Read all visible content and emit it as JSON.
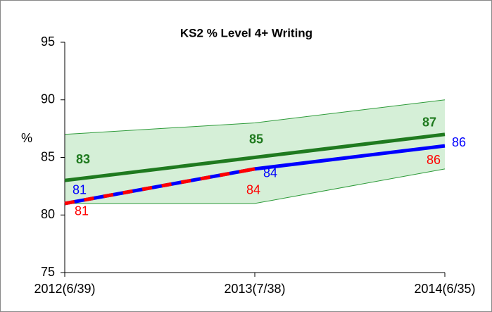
{
  "chart_data": {
    "type": "line",
    "title": "KS2 % Level 4+ Writing",
    "ylabel": "%",
    "categories": [
      "2012(6/39)",
      "2013(7/38)",
      "2014(6/35)"
    ],
    "band": {
      "upper": [
        87,
        88,
        90
      ],
      "lower": [
        81,
        81,
        84
      ],
      "color": "#d5efd7",
      "edge_color": "#2e9b3a"
    },
    "series": [
      {
        "color": "#1f7a1f",
        "values": [
          83,
          85,
          87
        ]
      },
      {
        "color": "#ff0000",
        "values": [
          81,
          84,
          86
        ]
      },
      {
        "color": "#0000ff",
        "values": [
          81,
          84,
          86
        ]
      }
    ],
    "ylim": [
      75,
      95
    ],
    "yticks": [
      75,
      80,
      85,
      90,
      95
    ]
  }
}
